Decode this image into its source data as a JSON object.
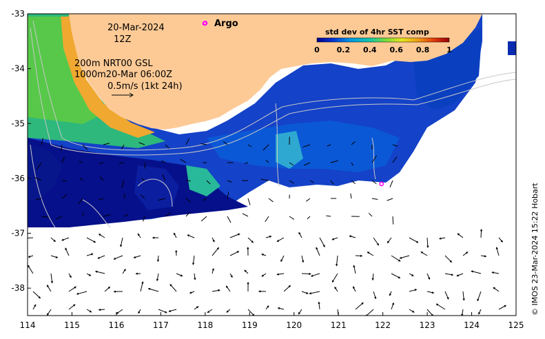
{
  "header": {
    "date": "20-Mar-2024",
    "hour": "12Z"
  },
  "legend": {
    "argo_label": "Argo",
    "argo_color": "#ff00ff",
    "colorbar_title": "std dev of 4hr SST comp",
    "colorbar_ticks": [
      "0",
      "0.2",
      "0.4",
      "0.6",
      "0.8",
      "1"
    ],
    "colorbar_range": [
      0,
      1
    ],
    "colormap": [
      "#00008c",
      "#0032d2",
      "#0096e6",
      "#14c8aa",
      "#78dc3c",
      "#e6e61e",
      "#f0a014",
      "#e63c0a",
      "#96000a"
    ]
  },
  "annotations": {
    "line1": "200m  NRT00 GSL",
    "line2": "1000m20-Mar 06:00Z",
    "scale_text": "0.5m/s (1kt 24h)"
  },
  "axes": {
    "x_ticks": [
      "114",
      "115",
      "116",
      "117",
      "118",
      "119",
      "120",
      "121",
      "122",
      "123",
      "124",
      "125"
    ],
    "y_ticks": [
      "-33",
      "-34",
      "-35",
      "-36",
      "-37",
      "-38"
    ],
    "xlim": [
      114,
      125
    ],
    "ylim": [
      -38.5,
      -33
    ]
  },
  "colors": {
    "land": "#fdca96",
    "ocean_nodata": "#ffffff",
    "contour": "#c8c8c8",
    "arrows": "#000000"
  },
  "argo_floats": [
    {
      "lon": 118.0,
      "lat": -33.17
    },
    {
      "lon": 121.97,
      "lat": -36.1
    }
  ],
  "copyright": "© IMOS 23-Mar-2024 15:22 Hobart"
}
